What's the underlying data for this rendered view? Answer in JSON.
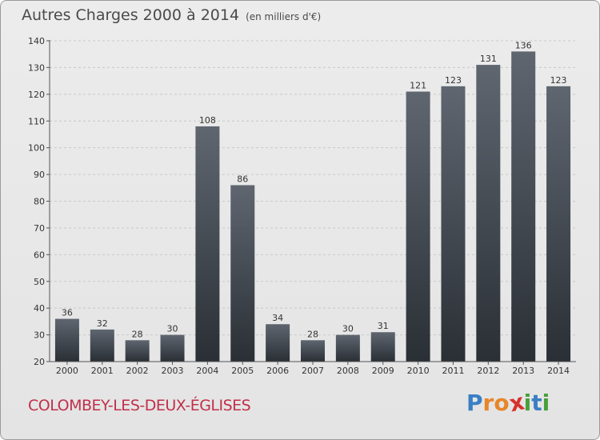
{
  "title": "Autres Charges 2000 à 2014",
  "subtitle": "(en milliers d'€)",
  "commune": "COLOMBEY-LES-DEUX-ÉGLISES",
  "logo": {
    "letters": [
      "P",
      "r",
      "o",
      "x",
      "i",
      "t",
      "i"
    ],
    "colors": [
      "#3a7fc4",
      "#e8862a",
      "#e8862a",
      "#d6312c",
      "#46a03c",
      "#3a7fc4",
      "#46a03c"
    ]
  },
  "colors": {
    "commune": "#c0304a",
    "bar_top": "#5f6670",
    "bar_bottom": "#2a2f35",
    "grid": "#c8c8c8"
  },
  "chart_data": {
    "type": "bar",
    "categories": [
      "2000",
      "2001",
      "2002",
      "2003",
      "2004",
      "2005",
      "2006",
      "2007",
      "2008",
      "2009",
      "2010",
      "2011",
      "2012",
      "2013",
      "2014"
    ],
    "values": [
      36,
      32,
      28,
      30,
      108,
      86,
      34,
      28,
      30,
      31,
      121,
      123,
      131,
      136,
      123
    ],
    "ylim": [
      20,
      140
    ],
    "yticks": [
      20,
      30,
      40,
      50,
      60,
      70,
      80,
      90,
      100,
      110,
      120,
      130,
      140
    ],
    "grid": true,
    "xlabel": "",
    "ylabel": ""
  }
}
